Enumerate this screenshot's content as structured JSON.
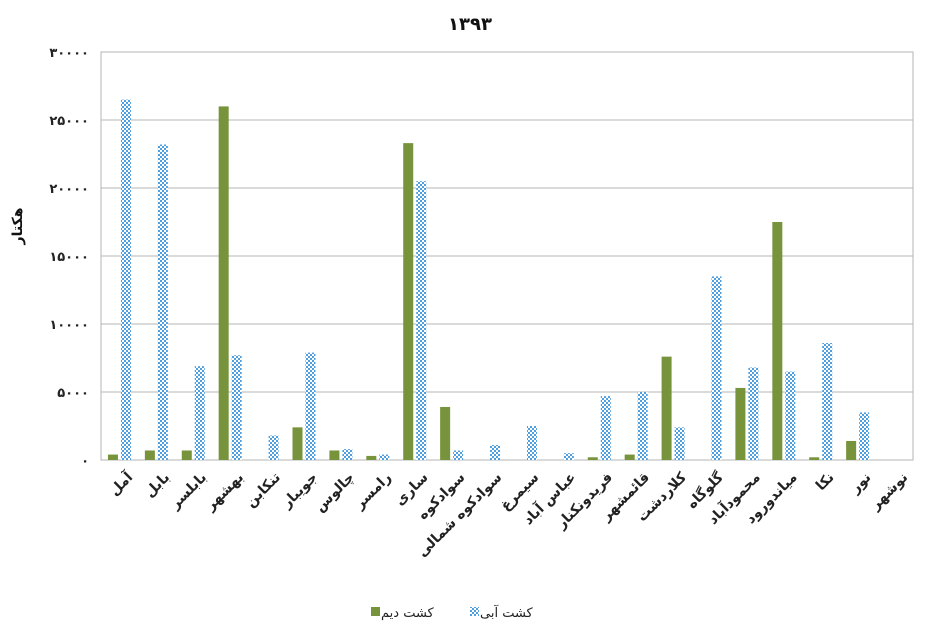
{
  "chart_data": {
    "type": "bar",
    "title": "۱۳۹۳",
    "ylabel": "هکتار",
    "ylim": [
      0,
      30000
    ],
    "yticks": [
      0,
      5000,
      10000,
      15000,
      20000,
      25000,
      30000
    ],
    "ytick_labels": [
      "۰",
      "۵۰۰۰",
      "۱۰۰۰۰",
      "۱۵۰۰۰",
      "۲۰۰۰۰",
      "۲۵۰۰۰",
      "۳۰۰۰۰"
    ],
    "grid": true,
    "legend_position": "bottom",
    "categories": [
      "آمل",
      "بابل",
      "بابلسر",
      "بهشهر",
      "تنکابن",
      "جویبار",
      "چالوس",
      "رامسر",
      "ساری",
      "سوادکوه",
      "سوادکوه شمالی",
      "سیمرغ",
      "عباس آباد",
      "فریدونکنار",
      "قائمشهر",
      "کلاردشت",
      "گلوگاه",
      "محمودآباد",
      "میاندورود",
      "نکا",
      "نور",
      "نوشهر"
    ],
    "series": [
      {
        "name": "کشت دیم",
        "color": "#77933c",
        "pattern": "solid",
        "values": [
          400,
          700,
          700,
          26000,
          0,
          2400,
          700,
          300,
          23300,
          3900,
          0,
          0,
          0,
          200,
          400,
          7600,
          0,
          5300,
          17500,
          200,
          1400,
          0
        ]
      },
      {
        "name": "کشت آبی",
        "color": "#4f9fe0",
        "pattern": "checker",
        "values": [
          26500,
          23200,
          6900,
          7700,
          1800,
          7900,
          800,
          400,
          20500,
          700,
          1100,
          2500,
          500,
          4700,
          5000,
          2400,
          13500,
          6800,
          6500,
          8600,
          3500,
          0
        ]
      }
    ]
  }
}
